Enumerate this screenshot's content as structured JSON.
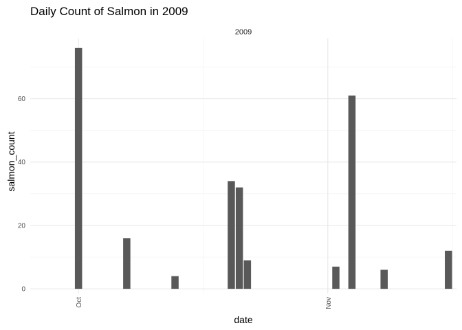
{
  "chart_data": {
    "type": "bar",
    "title": "Daily Count of Salmon in 2009",
    "facet_label": "2009",
    "xlabel": "date",
    "ylabel": "salmon_count",
    "x_tick_labels": [
      {
        "label": "Oct",
        "date": "2009-10-01"
      },
      {
        "label": "Nov",
        "date": "2009-11-01"
      }
    ],
    "y_ticks": [
      0,
      20,
      40,
      60
    ],
    "ylim": [
      -1.5,
      79
    ],
    "xlim": [
      "2009-09-25",
      "2009-11-17"
    ],
    "grid": true,
    "bar_color": "#595959",
    "categories": [
      "2009-10-01",
      "2009-10-07",
      "2009-10-13",
      "2009-10-20",
      "2009-10-21",
      "2009-10-22",
      "2009-11-02",
      "2009-11-04",
      "2009-11-08",
      "2009-11-16"
    ],
    "values": [
      76,
      16,
      4,
      34,
      32,
      9,
      7,
      61,
      6,
      12
    ]
  }
}
